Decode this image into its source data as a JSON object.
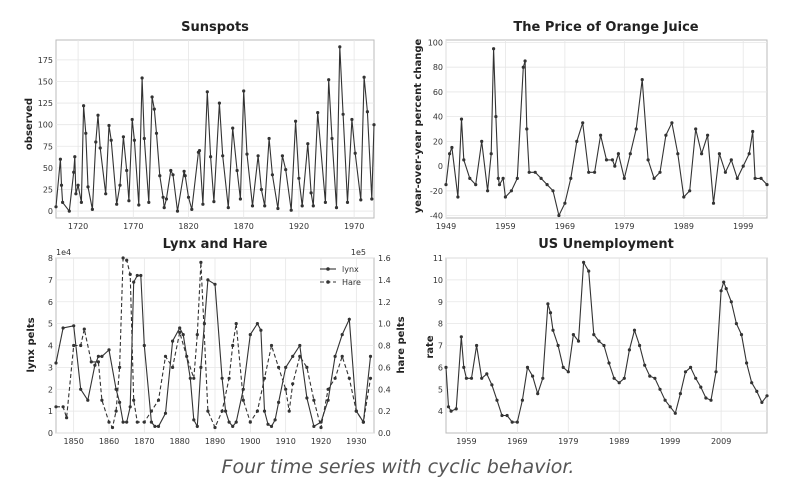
{
  "caption": "Four time series with cyclic behavior.",
  "colors": {
    "line": "#333333",
    "grid": "#e6e6e6",
    "frame": "#bbbbbb"
  },
  "chart_data": [
    {
      "id": "sunspots",
      "type": "line",
      "title": "Sunspots",
      "ylabel": "observed",
      "xlim": [
        1700,
        1988
      ],
      "ylim": [
        -8,
        198
      ],
      "xticks": [
        1720,
        1770,
        1820,
        1870,
        1920,
        1970
      ],
      "yticks": [
        0,
        25,
        50,
        75,
        100,
        125,
        150,
        175
      ],
      "grid": true,
      "series": [
        {
          "style": "solid-marker",
          "x": [
            1700,
            1704,
            1705,
            1706,
            1712,
            1716,
            1717,
            1718,
            1720,
            1723,
            1725,
            1727,
            1729,
            1733,
            1736,
            1738,
            1740,
            1745,
            1748,
            1750,
            1755,
            1758,
            1761,
            1764,
            1766,
            1769,
            1771,
            1775,
            1778,
            1780,
            1784,
            1787,
            1789,
            1791,
            1794,
            1797,
            1798,
            1800,
            1804,
            1806,
            1810,
            1816,
            1817,
            1820,
            1823,
            1829,
            1830,
            1833,
            1837,
            1840,
            1843,
            1848,
            1851,
            1856,
            1860,
            1864,
            1867,
            1870,
            1873,
            1878,
            1883,
            1886,
            1889,
            1893,
            1896,
            1901,
            1905,
            1908,
            1913,
            1917,
            1920,
            1923,
            1928,
            1931,
            1933,
            1937,
            1944,
            1947,
            1950,
            1954,
            1957,
            1960,
            1964,
            1968,
            1971,
            1976,
            1979,
            1982,
            1986,
            1988
          ],
          "y": [
            5,
            60,
            30,
            10,
            0,
            45,
            63,
            20,
            30,
            10,
            122,
            90,
            28,
            2,
            80,
            111,
            73,
            20,
            99,
            82,
            8,
            30,
            86,
            47,
            12,
            106,
            82,
            7,
            154,
            84,
            10,
            132,
            118,
            90,
            41,
            16,
            4,
            14,
            47,
            42,
            0,
            46,
            41,
            16,
            2,
            68,
            70,
            8,
            138,
            63,
            11,
            125,
            64,
            4,
            96,
            47,
            14,
            139,
            66,
            6,
            64,
            25,
            6,
            84,
            42,
            3,
            64,
            48,
            1,
            104,
            38,
            6,
            78,
            21,
            6,
            114,
            10,
            152,
            84,
            4,
            190,
            112,
            10,
            106,
            67,
            13,
            155,
            115,
            14,
            100
          ]
        }
      ]
    },
    {
      "id": "orange-juice",
      "type": "line",
      "title": "The Price of Orange Juice",
      "ylabel": "year-over-year percent change",
      "xlim": [
        1949,
        2003
      ],
      "ylim": [
        -42,
        102
      ],
      "xticks": [
        1949,
        1959,
        1969,
        1979,
        1989,
        1999
      ],
      "yticks": [
        -40,
        -20,
        0,
        20,
        40,
        60,
        80,
        100
      ],
      "grid": true,
      "series": [
        {
          "style": "solid-marker",
          "x": [
            1949,
            1949.6,
            1950,
            1951,
            1951.6,
            1952,
            1953,
            1954,
            1955,
            1956,
            1956.6,
            1957,
            1957.4,
            1957.8,
            1958,
            1958.6,
            1959,
            1960,
            1961,
            1962,
            1962.3,
            1962.6,
            1963,
            1964,
            1965,
            1966,
            1967,
            1968,
            1969,
            1970,
            1971,
            1972,
            1973,
            1974,
            1975,
            1976,
            1977,
            1977.4,
            1978,
            1979,
            1980,
            1981,
            1982,
            1983,
            1984,
            1985,
            1986,
            1987,
            1988,
            1989,
            1990,
            1991,
            1992,
            1993,
            1994,
            1995,
            1996,
            1997,
            1998,
            1999,
            2000,
            2000.6,
            2001,
            2002,
            2003
          ],
          "y": [
            -15,
            10,
            15,
            -25,
            38,
            5,
            -10,
            -15,
            20,
            -20,
            10,
            95,
            40,
            -10,
            -15,
            -10,
            -25,
            -20,
            -10,
            80,
            85,
            30,
            -5,
            -5,
            -10,
            -15,
            -20,
            -40,
            -30,
            -10,
            20,
            35,
            -5,
            -5,
            25,
            5,
            5,
            0,
            10,
            -10,
            10,
            30,
            70,
            5,
            -10,
            -5,
            25,
            35,
            10,
            -25,
            -20,
            30,
            10,
            25,
            -30,
            10,
            -5,
            5,
            -10,
            0,
            10,
            28,
            -10,
            -10,
            -15
          ]
        }
      ]
    },
    {
      "id": "lynx-hare",
      "type": "line",
      "title": "Lynx and Hare",
      "ylabel": "lynx pelts",
      "y2label": "hare pelts",
      "yscale_label": "1e4",
      "y2scale_label": "1e5",
      "xlim": [
        1845,
        1935
      ],
      "ylim": [
        0,
        8
      ],
      "y2lim": [
        0,
        1.6
      ],
      "xticks": [
        1850,
        1860,
        1870,
        1880,
        1890,
        1900,
        1910,
        1920,
        1930
      ],
      "yticks": [
        0,
        1,
        2,
        3,
        4,
        5,
        6,
        7,
        8
      ],
      "y2ticks": [
        0.0,
        0.2,
        0.4,
        0.6,
        0.8,
        1.0,
        1.2,
        1.4,
        1.6
      ],
      "grid": true,
      "legend": "top-right",
      "series": [
        {
          "name": "lynx",
          "style": "solid-marker",
          "axis": "left",
          "x": [
            1845,
            1847,
            1850,
            1852,
            1854,
            1856,
            1857,
            1858,
            1860,
            1862,
            1863,
            1864,
            1865,
            1866,
            1867,
            1868,
            1869,
            1870,
            1872,
            1873,
            1874,
            1876,
            1878,
            1880,
            1881,
            1883,
            1884,
            1885,
            1886,
            1887,
            1888,
            1890,
            1892,
            1893,
            1894,
            1895,
            1896,
            1898,
            1900,
            1902,
            1903,
            1904,
            1905,
            1906,
            1907,
            1908,
            1910,
            1912,
            1914,
            1916,
            1918,
            1920,
            1922,
            1924,
            1926,
            1928,
            1930,
            1932,
            1934
          ],
          "y": [
            3.2,
            4.8,
            4.9,
            2,
            1.5,
            3.1,
            3.5,
            3.5,
            3.8,
            2,
            1.4,
            0.5,
            0.5,
            1.2,
            6.9,
            7.2,
            7.2,
            4,
            0.5,
            0.3,
            0.3,
            0.9,
            4.2,
            4.8,
            4.5,
            2.5,
            0.6,
            0.3,
            3,
            5,
            7,
            6.8,
            2.5,
            1,
            0.5,
            0.3,
            0.5,
            2,
            4.5,
            5,
            4.7,
            1,
            0.4,
            0.3,
            0.6,
            1.4,
            3,
            3.5,
            4,
            1.6,
            0.3,
            0.5,
            1.5,
            3.5,
            4.5,
            5.2,
            1,
            0.5,
            3.5
          ]
        },
        {
          "name": "Hare",
          "style": "dashed-marker",
          "axis": "right",
          "x": [
            1845,
            1847,
            1848,
            1850,
            1852,
            1853,
            1855,
            1857,
            1858,
            1860,
            1861,
            1862,
            1863,
            1864,
            1865,
            1866,
            1867,
            1868,
            1870,
            1872,
            1874,
            1876,
            1878,
            1880,
            1882,
            1884,
            1885,
            1886,
            1888,
            1890,
            1892,
            1894,
            1895,
            1896,
            1898,
            1900,
            1902,
            1904,
            1906,
            1908,
            1910,
            1911,
            1912,
            1914,
            1916,
            1918,
            1920,
            1922,
            1924,
            1926,
            1928,
            1930,
            1932,
            1934
          ],
          "y": [
            0.24,
            0.24,
            0.14,
            0.8,
            0.8,
            0.95,
            0.65,
            0.65,
            0.3,
            0.1,
            0.05,
            0.2,
            0.6,
            1.6,
            1.58,
            1.45,
            0.3,
            0.1,
            0.1,
            0.2,
            0.3,
            0.7,
            0.6,
            0.92,
            0.7,
            0.5,
            0.9,
            1.56,
            0.2,
            0.05,
            0.2,
            0.5,
            0.8,
            1,
            0.3,
            0.1,
            0.2,
            0.5,
            0.8,
            0.6,
            0.4,
            0.2,
            0.45,
            0.7,
            0.6,
            0.3,
            0.05,
            0.4,
            0.5,
            0.7,
            0.5,
            0.2,
            0.1,
            0.5
          ]
        }
      ]
    },
    {
      "id": "unemployment",
      "type": "line",
      "title": "US Unemployment",
      "ylabel": "rate",
      "xlim": [
        1955,
        2018
      ],
      "ylim": [
        3,
        11
      ],
      "xticks": [
        1959,
        1969,
        1979,
        1989,
        1999,
        2009
      ],
      "yticks": [
        4,
        5,
        6,
        7,
        8,
        9,
        10,
        11
      ],
      "grid": true,
      "series": [
        {
          "style": "solid-marker",
          "x": [
            1955,
            1955.5,
            1956,
            1957,
            1958,
            1958.5,
            1959,
            1960,
            1961,
            1962,
            1963,
            1964,
            1965,
            1966,
            1967,
            1968,
            1969,
            1970,
            1971,
            1972,
            1973,
            1974,
            1975,
            1975.5,
            1976,
            1977,
            1978,
            1979,
            1980,
            1981,
            1982,
            1983,
            1984,
            1985,
            1986,
            1987,
            1988,
            1989,
            1990,
            1991,
            1992,
            1993,
            1994,
            1995,
            1996,
            1997,
            1998,
            1999,
            2000,
            2001,
            2002,
            2003,
            2004,
            2005,
            2006,
            2007,
            2008,
            2009,
            2009.5,
            2010,
            2011,
            2012,
            2013,
            2014,
            2015,
            2016,
            2017,
            2018
          ],
          "y": [
            6.0,
            4.2,
            4.0,
            4.1,
            7.4,
            6.0,
            5.5,
            5.5,
            7.0,
            5.5,
            5.7,
            5.2,
            4.5,
            3.8,
            3.8,
            3.5,
            3.5,
            4.5,
            6.0,
            5.6,
            4.8,
            5.5,
            8.9,
            8.5,
            7.7,
            7.0,
            6.0,
            5.8,
            7.5,
            7.2,
            10.8,
            10.4,
            7.5,
            7.2,
            7.0,
            6.2,
            5.5,
            5.3,
            5.5,
            6.8,
            7.7,
            7.0,
            6.1,
            5.6,
            5.5,
            5.0,
            4.5,
            4.2,
            3.9,
            4.8,
            5.8,
            6.0,
            5.5,
            5.1,
            4.6,
            4.5,
            5.8,
            9.5,
            9.9,
            9.6,
            9.0,
            8.0,
            7.5,
            6.2,
            5.3,
            4.9,
            4.4,
            4.7
          ]
        }
      ]
    }
  ]
}
